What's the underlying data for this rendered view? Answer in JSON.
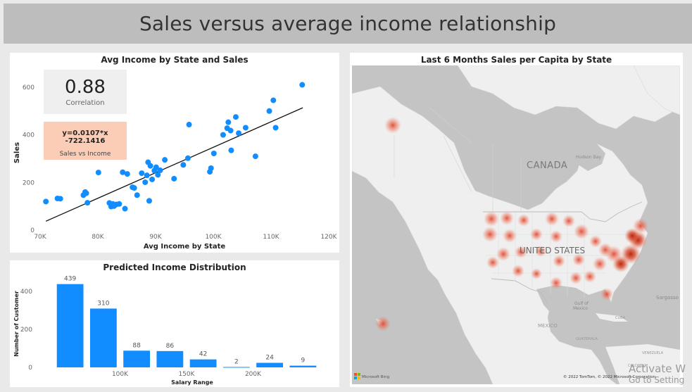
{
  "page_title": "Sales versus average income relationship",
  "scatter_card": {
    "title": "Avg Income by State and Sales",
    "kpi": {
      "value": "0.88",
      "label": "Correlation"
    },
    "equation": {
      "value": "y=0.0107*x -722.1416",
      "label": "Sales vs Income"
    }
  },
  "bar_card": {
    "title": "Predicted Income Distribution"
  },
  "map_card": {
    "title": "Last 6 Months Sales per Capita by State",
    "labels": {
      "canada": "CANADA",
      "us": "UNITED STATES",
      "hudson": "Hudson Bay",
      "gulf": "Gulf of\nMexico",
      "mexico": "MEXICO",
      "cuba": "CUBA",
      "guatemala": "GUATEMALA",
      "venezuela": "VENEZUELA",
      "colombia": "COLOMBIA",
      "sargasso": "Sargasso"
    },
    "attribution": "© 2022 TomTom, © 2022 Microsoft Corporation",
    "bing": "Microsoft Bing"
  },
  "watermark": {
    "line1": "Activate W",
    "line2": "Go to Setting"
  },
  "chart_data": [
    {
      "type": "scatter",
      "title": "Avg Income by State and Sales",
      "xlabel": "Avg Income by State",
      "ylabel": "Sales",
      "xlim": [
        70000,
        120000
      ],
      "ylim": [
        0,
        650
      ],
      "xticks": [
        {
          "v": 70000,
          "label": "70K"
        },
        {
          "v": 80000,
          "label": "80K"
        },
        {
          "v": 90000,
          "label": "90K"
        },
        {
          "v": 100000,
          "label": "100K"
        },
        {
          "v": 110000,
          "label": "110K"
        },
        {
          "v": 120000,
          "label": "120K"
        }
      ],
      "yticks": [
        {
          "v": 0,
          "label": "0"
        },
        {
          "v": 200,
          "label": "200"
        },
        {
          "v": 400,
          "label": "400"
        },
        {
          "v": 600,
          "label": "600"
        }
      ],
      "trendline": {
        "slope": 0.0107,
        "intercept": -722.1416,
        "x_range": [
          71000,
          115500
        ]
      },
      "points": [
        [
          71000,
          120
        ],
        [
          73000,
          133
        ],
        [
          73500,
          132
        ],
        [
          77500,
          147
        ],
        [
          77800,
          160
        ],
        [
          78000,
          155
        ],
        [
          78200,
          115
        ],
        [
          80100,
          242
        ],
        [
          82000,
          114
        ],
        [
          82300,
          99
        ],
        [
          82600,
          110
        ],
        [
          82800,
          101
        ],
        [
          83200,
          108
        ],
        [
          83700,
          110
        ],
        [
          84300,
          243
        ],
        [
          84700,
          90
        ],
        [
          85100,
          236
        ],
        [
          86000,
          180
        ],
        [
          86300,
          177
        ],
        [
          86800,
          147
        ],
        [
          87600,
          239
        ],
        [
          88200,
          201
        ],
        [
          88500,
          230
        ],
        [
          88700,
          285
        ],
        [
          88900,
          123
        ],
        [
          89100,
          270
        ],
        [
          89400,
          213
        ],
        [
          89800,
          250
        ],
        [
          90100,
          264
        ],
        [
          90400,
          232
        ],
        [
          90800,
          251
        ],
        [
          91600,
          295
        ],
        [
          93200,
          216
        ],
        [
          94800,
          274
        ],
        [
          95600,
          302
        ],
        [
          95800,
          443
        ],
        [
          99400,
          245
        ],
        [
          99600,
          260
        ],
        [
          100100,
          322
        ],
        [
          101700,
          400
        ],
        [
          102400,
          428
        ],
        [
          102600,
          453
        ],
        [
          103000,
          418
        ],
        [
          103100,
          335
        ],
        [
          103900,
          475
        ],
        [
          104400,
          407
        ],
        [
          105600,
          430
        ],
        [
          107300,
          310
        ],
        [
          109700,
          500
        ],
        [
          110400,
          545
        ],
        [
          110800,
          430
        ],
        [
          115400,
          610
        ]
      ]
    },
    {
      "type": "bar",
      "title": "Predicted Income Distribution",
      "xlabel": "Salary Range",
      "ylabel": "Number of Customer",
      "ylim": [
        0,
        460
      ],
      "yticks": [
        {
          "v": 0,
          "label": "0"
        },
        {
          "v": 200,
          "label": "200"
        },
        {
          "v": 400,
          "label": "400"
        }
      ],
      "xtick_labels": [
        {
          "after_bar": 1,
          "label": "100K"
        },
        {
          "after_bar": 3,
          "label": "150K"
        },
        {
          "after_bar": 5,
          "label": "200K"
        }
      ],
      "values": [
        439,
        310,
        88,
        86,
        42,
        2,
        24,
        9
      ]
    }
  ]
}
